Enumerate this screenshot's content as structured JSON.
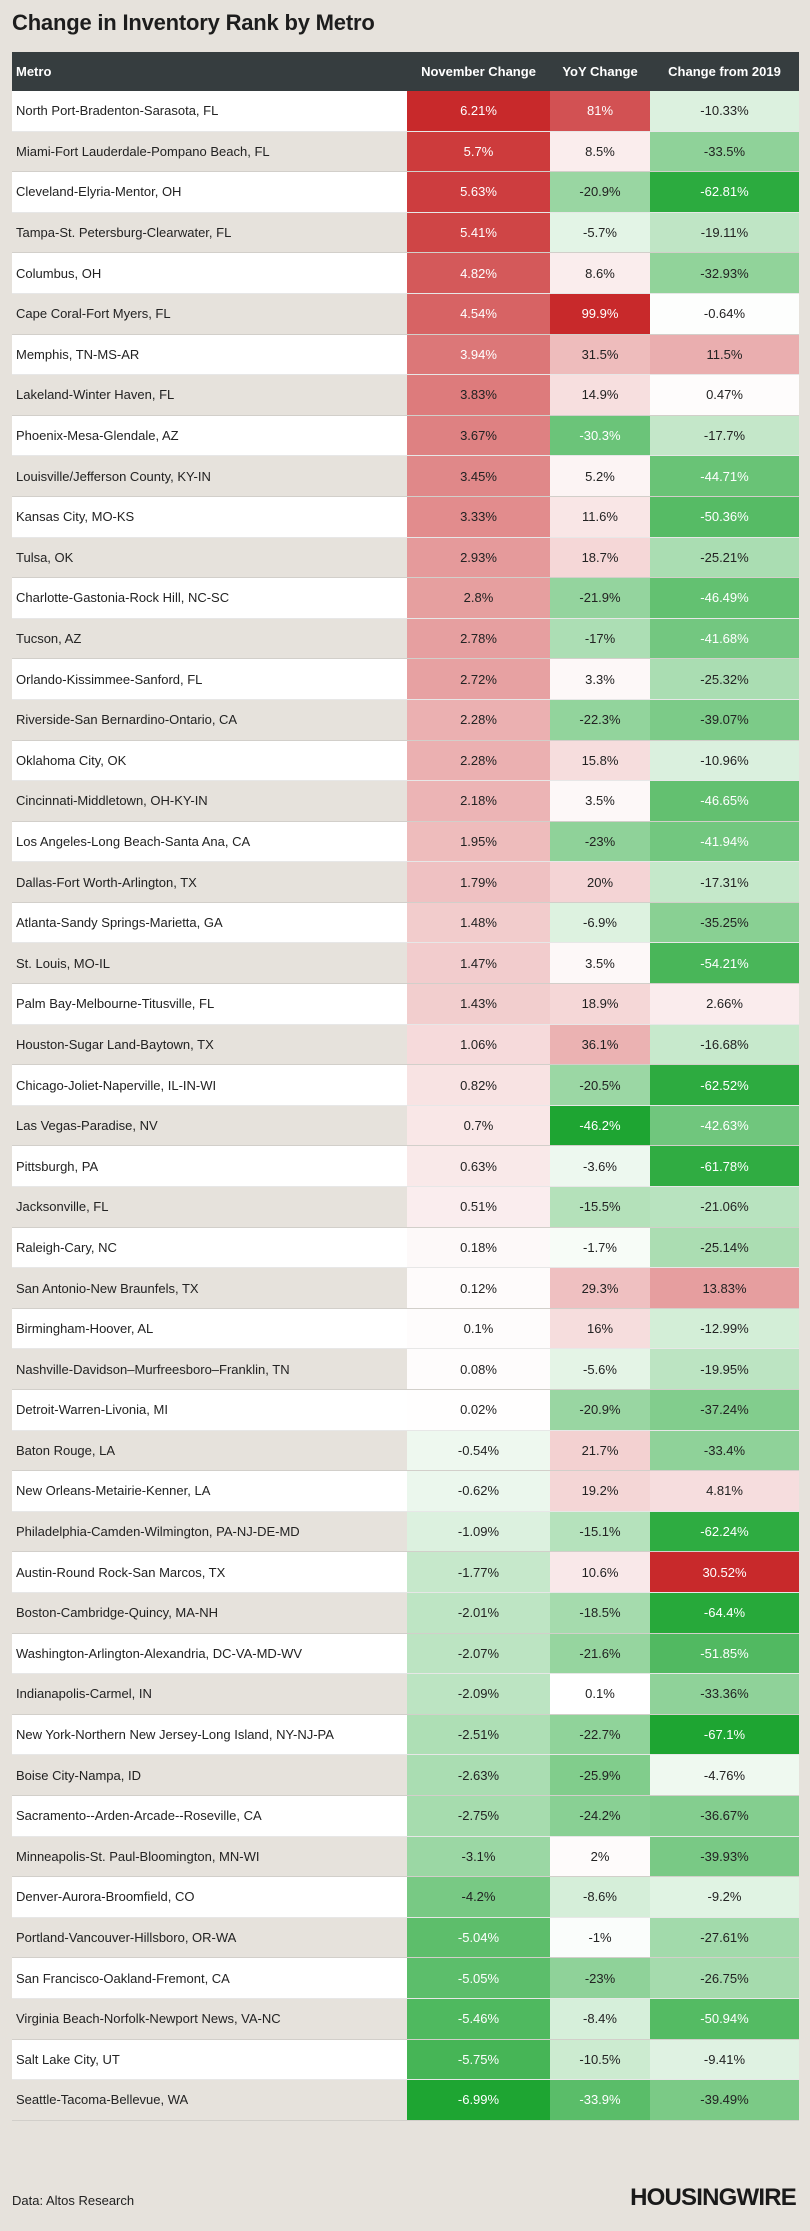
{
  "title": "Change in Inventory Rank by Metro",
  "source": "Data: Altos Research",
  "brand": "HOUSINGWIRE",
  "chart_data": {
    "type": "table",
    "columns": [
      "Metro",
      "November Change",
      "YoY Change",
      "Change from 2019"
    ],
    "rows": [
      [
        "North Port-Bradenton-Sarasota, FL",
        "6.21%",
        "81%",
        "-10.33%"
      ],
      [
        "Miami-Fort Lauderdale-Pompano Beach, FL",
        "5.7%",
        "8.5%",
        "-33.5%"
      ],
      [
        "Cleveland-Elyria-Mentor, OH",
        "5.63%",
        "-20.9%",
        "-62.81%"
      ],
      [
        "Tampa-St. Petersburg-Clearwater, FL",
        "5.41%",
        "-5.7%",
        "-19.11%"
      ],
      [
        "Columbus, OH",
        "4.82%",
        "8.6%",
        "-32.93%"
      ],
      [
        "Cape Coral-Fort Myers, FL",
        "4.54%",
        "99.9%",
        "-0.64%"
      ],
      [
        "Memphis, TN-MS-AR",
        "3.94%",
        "31.5%",
        "11.5%"
      ],
      [
        "Lakeland-Winter Haven, FL",
        "3.83%",
        "14.9%",
        "0.47%"
      ],
      [
        "Phoenix-Mesa-Glendale, AZ",
        "3.67%",
        "-30.3%",
        "-17.7%"
      ],
      [
        "Louisville/Jefferson County, KY-IN",
        "3.45%",
        "5.2%",
        "-44.71%"
      ],
      [
        "Kansas City, MO-KS",
        "3.33%",
        "11.6%",
        "-50.36%"
      ],
      [
        "Tulsa, OK",
        "2.93%",
        "18.7%",
        "-25.21%"
      ],
      [
        "Charlotte-Gastonia-Rock Hill, NC-SC",
        "2.8%",
        "-21.9%",
        "-46.49%"
      ],
      [
        "Tucson, AZ",
        "2.78%",
        "-17%",
        "-41.68%"
      ],
      [
        "Orlando-Kissimmee-Sanford, FL",
        "2.72%",
        "3.3%",
        "-25.32%"
      ],
      [
        "Riverside-San Bernardino-Ontario, CA",
        "2.28%",
        "-22.3%",
        "-39.07%"
      ],
      [
        "Oklahoma City, OK",
        "2.28%",
        "15.8%",
        "-10.96%"
      ],
      [
        "Cincinnati-Middletown, OH-KY-IN",
        "2.18%",
        "3.5%",
        "-46.65%"
      ],
      [
        "Los Angeles-Long Beach-Santa Ana, CA",
        "1.95%",
        "-23%",
        "-41.94%"
      ],
      [
        "Dallas-Fort Worth-Arlington, TX",
        "1.79%",
        "20%",
        "-17.31%"
      ],
      [
        "Atlanta-Sandy Springs-Marietta, GA",
        "1.48%",
        "-6.9%",
        "-35.25%"
      ],
      [
        "St. Louis, MO-IL",
        "1.47%",
        "3.5%",
        "-54.21%"
      ],
      [
        "Palm Bay-Melbourne-Titusville, FL",
        "1.43%",
        "18.9%",
        "2.66%"
      ],
      [
        "Houston-Sugar Land-Baytown, TX",
        "1.06%",
        "36.1%",
        "-16.68%"
      ],
      [
        "Chicago-Joliet-Naperville, IL-IN-WI",
        "0.82%",
        "-20.5%",
        "-62.52%"
      ],
      [
        "Las Vegas-Paradise, NV",
        "0.7%",
        "-46.2%",
        "-42.63%"
      ],
      [
        "Pittsburgh, PA",
        "0.63%",
        "-3.6%",
        "-61.78%"
      ],
      [
        "Jacksonville, FL",
        "0.51%",
        "-15.5%",
        "-21.06%"
      ],
      [
        "Raleigh-Cary, NC",
        "0.18%",
        "-1.7%",
        "-25.14%"
      ],
      [
        "San Antonio-New Braunfels, TX",
        "0.12%",
        "29.3%",
        "13.83%"
      ],
      [
        "Birmingham-Hoover, AL",
        "0.1%",
        "16%",
        "-12.99%"
      ],
      [
        "Nashville-Davidson–Murfreesboro–Franklin, TN",
        "0.08%",
        "-5.6%",
        "-19.95%"
      ],
      [
        "Detroit-Warren-Livonia, MI",
        "0.02%",
        "-20.9%",
        "-37.24%"
      ],
      [
        "Baton Rouge, LA",
        "-0.54%",
        "21.7%",
        "-33.4%"
      ],
      [
        "New Orleans-Metairie-Kenner, LA",
        "-0.62%",
        "19.2%",
        "4.81%"
      ],
      [
        "Philadelphia-Camden-Wilmington, PA-NJ-DE-MD",
        "-1.09%",
        "-15.1%",
        "-62.24%"
      ],
      [
        "Austin-Round Rock-San Marcos, TX",
        "-1.77%",
        "10.6%",
        "30.52%"
      ],
      [
        "Boston-Cambridge-Quincy, MA-NH",
        "-2.01%",
        "-18.5%",
        "-64.4%"
      ],
      [
        "Washington-Arlington-Alexandria, DC-VA-MD-WV",
        "-2.07%",
        "-21.6%",
        "-51.85%"
      ],
      [
        "Indianapolis-Carmel, IN",
        "-2.09%",
        "0.1%",
        "-33.36%"
      ],
      [
        "New York-Northern New Jersey-Long Island, NY-NJ-PA",
        "-2.51%",
        "-22.7%",
        "-67.1%"
      ],
      [
        "Boise City-Nampa, ID",
        "-2.63%",
        "-25.9%",
        "-4.76%"
      ],
      [
        "Sacramento--Arden-Arcade--Roseville, CA",
        "-2.75%",
        "-24.2%",
        "-36.67%"
      ],
      [
        "Minneapolis-St. Paul-Bloomington, MN-WI",
        "-3.1%",
        "2%",
        "-39.93%"
      ],
      [
        "Denver-Aurora-Broomfield, CO",
        "-4.2%",
        "-8.6%",
        "-9.2%"
      ],
      [
        "Portland-Vancouver-Hillsboro, OR-WA",
        "-5.04%",
        "-1%",
        "-27.61%"
      ],
      [
        "San Francisco-Oakland-Fremont, CA",
        "-5.05%",
        "-23%",
        "-26.75%"
      ],
      [
        "Virginia Beach-Norfolk-Newport News, VA-NC",
        "-5.46%",
        "-8.4%",
        "-50.94%"
      ],
      [
        "Salt Lake City, UT",
        "-5.75%",
        "-10.5%",
        "-9.41%"
      ],
      [
        "Seattle-Tacoma-Bellevue, WA",
        "-6.99%",
        "-33.9%",
        "-39.49%"
      ]
    ],
    "colors": {
      "header_bg": "#363d3f",
      "positive_max": "#c8292b",
      "negative_max": "#1ea532",
      "neutral": "#ffffff",
      "row_even": "#ffffff",
      "row_odd": "#e6e2dc"
    }
  }
}
